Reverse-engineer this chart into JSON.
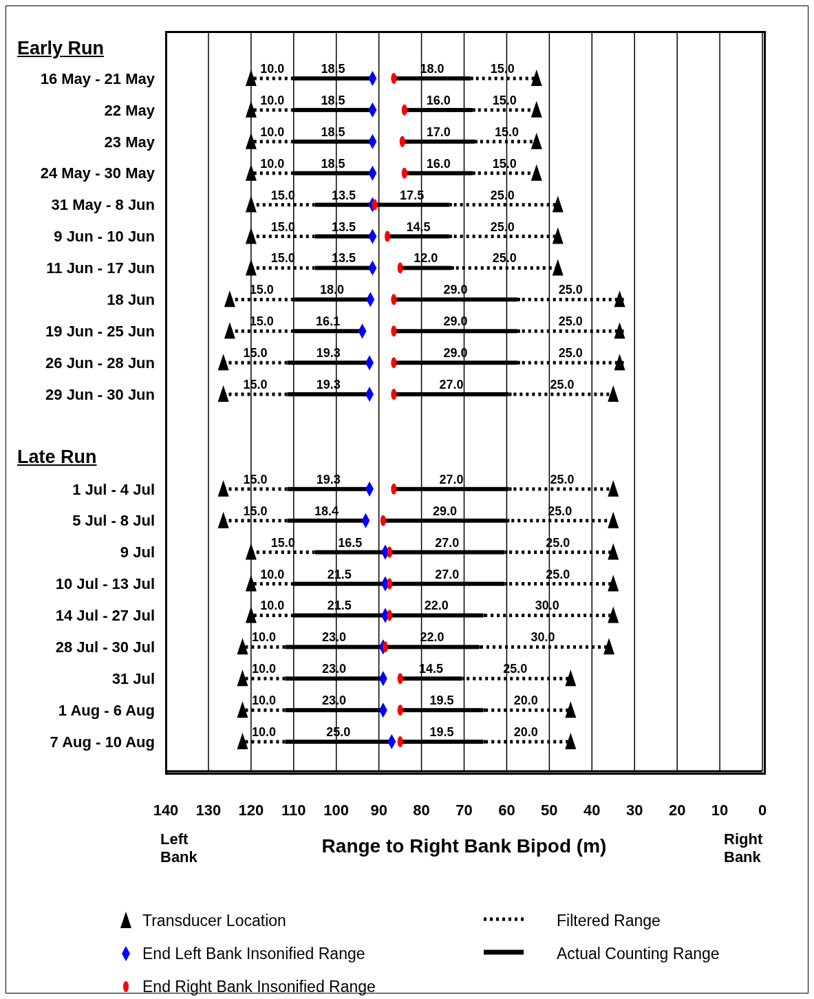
{
  "chart_data": {
    "type": "bar",
    "orientation": "horizontal",
    "title": "Early Run",
    "xlabel": "Range to Right Bank Bipod (m)",
    "annotations": [
      "Late Run",
      "Left Bank",
      "Right Bank"
    ],
    "categories": [
      "16 May - 21 May",
      "22 May",
      "23 May",
      "24 May - 30 May",
      "31 May - 8 Jun",
      "9 Jun - 10 Jun",
      "11 Jun - 17 Jun",
      "18 Jun",
      "19 Jun - 25 Jun",
      "26 Jun - 28 Jun",
      "29 Jun - 30 Jun",
      null,
      null,
      "1 Jul - 4 Jul",
      "5 Jul - 8 Jul",
      "9 Jul",
      "10 Jul - 13 Jul",
      "14 Jul - 27 Jul",
      "28 Jul - 30 Jul",
      "31 Jul",
      "1 Aug - 6 Aug",
      "7 Aug - 10 Aug"
    ],
    "xlim": [
      140,
      0
    ],
    "xticks": [
      140,
      130,
      120,
      110,
      100,
      90,
      80,
      70,
      60,
      50,
      40,
      30,
      20,
      10,
      0
    ],
    "grid": "x",
    "legend": "bottom",
    "series": [
      {
        "type": "bar",
        "name": "Filtered Range",
        "color": "#000000",
        "line_style": "dotted",
        "base": [
          110,
          110,
          110,
          110,
          105,
          105,
          105,
          110,
          110,
          111.5,
          111.5,
          null,
          null,
          111.5,
          111.5,
          105,
          110,
          110,
          112,
          112,
          112,
          112
        ],
        "values": [
          10,
          10,
          10,
          10,
          15,
          15,
          15,
          15,
          15,
          15,
          15,
          null,
          null,
          15,
          15,
          15,
          10,
          10,
          10,
          10,
          10,
          10
        ],
        "value_labels": [
          "10.0",
          "10.0",
          "10.0",
          "10.0",
          "15.0",
          "15.0",
          "15.0",
          "15.0",
          "15.0",
          "15.0",
          "15.0",
          null,
          null,
          "15.0",
          "15.0",
          "15.0",
          "10.0",
          "10.0",
          "10.0",
          "10.0",
          "10.0",
          "10.0"
        ]
      },
      {
        "type": "bar",
        "name": "Actual Counting Range",
        "color": "#000000",
        "line_style": "solid",
        "base": [
          91.5,
          91.5,
          91.5,
          91.5,
          91.5,
          91.5,
          91.5,
          92,
          93.9,
          92.2,
          92.2,
          null,
          null,
          92.2,
          93.1,
          88.5,
          88.5,
          88.5,
          89,
          89,
          89,
          87
        ],
        "values": [
          18.5,
          18.5,
          18.5,
          18.5,
          13.5,
          13.5,
          13.5,
          18,
          16.1,
          19.3,
          19.3,
          null,
          null,
          19.3,
          18.4,
          16.5,
          21.5,
          21.5,
          23,
          23,
          23,
          25
        ],
        "value_labels": [
          "18.5",
          "18.5",
          "18.5",
          "18.5",
          "13.5",
          "13.5",
          "13.5",
          "18.0",
          "16.1",
          "19.3",
          "19.3",
          null,
          null,
          "19.3",
          "18.4",
          "16.5",
          "21.5",
          "21.5",
          "23.0",
          "23.0",
          "23.0",
          "25.0"
        ]
      },
      {
        "type": "bar",
        "color": "#000000",
        "line_style": "solid",
        "base": [
          68.5,
          68,
          67.5,
          68,
          73.5,
          73.5,
          73,
          57.5,
          57.5,
          57.5,
          59.5,
          null,
          null,
          59.5,
          60,
          60.5,
          60.5,
          65.5,
          66.5,
          70.5,
          65.5,
          65.5
        ],
        "values": [
          18,
          16,
          17,
          16,
          17.5,
          14.5,
          12,
          29,
          29,
          29,
          27,
          null,
          null,
          27,
          29,
          27,
          27,
          22,
          22,
          14.5,
          19.5,
          19.5
        ],
        "value_labels": [
          "18.0",
          "16.0",
          "17.0",
          "16.0",
          "17.5",
          "14.5",
          "12.0",
          "29.0",
          "29.0",
          "29.0",
          "27.0",
          null,
          null,
          "27.0",
          "29.0",
          "27.0",
          "27.0",
          "22.0",
          "22.0",
          "14.5",
          "19.5",
          "19.5"
        ]
      },
      {
        "type": "bar",
        "color": "#000000",
        "line_style": "dotted",
        "base": [
          53.5,
          53,
          52.5,
          53,
          48.5,
          48.5,
          48,
          32.5,
          32.5,
          32.5,
          34.5,
          null,
          null,
          34.5,
          35,
          35.5,
          35.5,
          35.5,
          36.5,
          45.5,
          45.5,
          45.5
        ],
        "values": [
          15,
          15,
          15,
          15,
          25,
          25,
          25,
          25,
          25,
          25,
          25,
          null,
          null,
          25,
          25,
          25,
          25,
          30,
          30,
          25,
          20,
          20
        ],
        "value_labels": [
          "15.0",
          "15.0",
          "15.0",
          "15.0",
          "25.0",
          "25.0",
          "25.0",
          "25.0",
          "25.0",
          "25.0",
          "25.0",
          null,
          null,
          "25.0",
          "25.0",
          "25.0",
          "25.0",
          "30.0",
          "30.0",
          "25.0",
          "20.0",
          "20.0"
        ]
      },
      {
        "type": "scatter",
        "name": "Transducer Location",
        "color": "#000000",
        "marker": "triangle",
        "values": [
          120,
          120,
          120,
          120,
          120,
          120,
          120,
          125,
          125,
          126.5,
          126.5,
          null,
          null,
          126.5,
          126.5,
          120,
          120,
          120,
          122,
          122,
          122,
          122
        ]
      },
      {
        "type": "scatter",
        "color": "#000000",
        "marker": "triangle",
        "values": [
          53,
          53,
          53,
          53,
          48,
          48,
          48,
          33.5,
          33.5,
          33.5,
          35,
          null,
          null,
          35,
          35,
          35,
          35,
          35,
          36,
          45,
          45,
          45
        ]
      },
      {
        "type": "scatter",
        "name": "End Left Bank Insonified Range",
        "color": "#0000ff",
        "marker": "diamond",
        "values": [
          91.5,
          91.5,
          91.5,
          91.5,
          91.5,
          91.5,
          91.5,
          92,
          93.9,
          92.2,
          92.2,
          null,
          null,
          92.2,
          93.1,
          88.5,
          88.5,
          88.5,
          89,
          89,
          89,
          87
        ]
      },
      {
        "type": "scatter",
        "name": "End Right Bank Insonified Range",
        "color": "#ff0000",
        "marker": "circle",
        "values": [
          86.5,
          84,
          84.5,
          84,
          91,
          88,
          85,
          86.5,
          86.5,
          86.5,
          86.5,
          null,
          null,
          86.5,
          89,
          87.5,
          87.5,
          87.5,
          88.5,
          85,
          85,
          85
        ]
      }
    ]
  }
}
